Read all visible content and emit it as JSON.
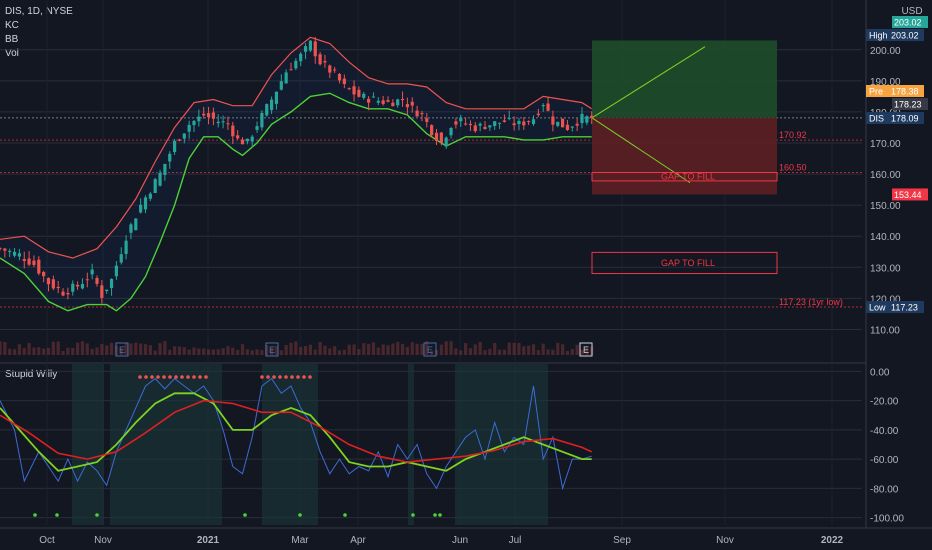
{
  "header": {
    "symbol": "DIS, 1D, NYSE",
    "indicators": [
      "KC",
      "BB",
      "Vol"
    ],
    "currency": "USD"
  },
  "sub_panel": {
    "title": "Stupid Willy"
  },
  "colors": {
    "background": "#131722",
    "bull": "#26a69a",
    "bear": "#ef5350",
    "kc_band": "#ef5350",
    "bb_band": "#4cd137",
    "target_zone": "#1f4d2a",
    "stop_zone": "#5c1f24",
    "gap_box": "#f23645",
    "indicator_line": "#3d6bd6",
    "indicator_fast": "#7ed321",
    "indicator_slow": "#e02020"
  },
  "chart_data": [
    {
      "type": "candlestick",
      "ylim": [
        105,
        207
      ],
      "x_ticks": [
        "Oct",
        "Nov",
        "2021",
        "Mar",
        "Apr",
        "Jun",
        "Jul",
        "Sep",
        "Nov",
        "2022"
      ],
      "y_ticks": [
        "200.00",
        "190.00",
        "180.00",
        "170.00",
        "160.00",
        "150.00",
        "140.00",
        "130.00",
        "120.00",
        "110.00"
      ],
      "price_labels": [
        {
          "text": "203.02",
          "value": 203.02,
          "color": "#26a69a"
        },
        {
          "text": "High",
          "value": 203.02,
          "color": "#1e3a5f"
        },
        {
          "text": "Pre",
          "value": 178.38,
          "color": "#f7a440"
        },
        {
          "text": "178.23",
          "value": 178.23,
          "color": "#363a45"
        },
        {
          "text": "DIS",
          "value": 178.09,
          "color": "#1e3a5f"
        },
        {
          "text": "153.44",
          "value": 153.44,
          "color": "#f23645"
        },
        {
          "text": "Low",
          "value": 117.23,
          "color": "#1e3a5f"
        }
      ],
      "annotations": [
        "170.92",
        "160.50",
        "117.23 (1yr low)",
        "GAP TO FILL",
        "GAP TO FILL"
      ],
      "levels": [
        {
          "label": "170.92",
          "value": 170.92
        },
        {
          "label": "160.50",
          "value": 160.5
        },
        {
          "label": "117.23 (1yr low)",
          "value": 117.23
        }
      ],
      "gap_boxes": [
        {
          "label": "GAP TO FILL",
          "top": 160.5,
          "bottom": 157.8
        },
        {
          "label": "GAP TO FILL",
          "top": 134.8,
          "bottom": 128.0
        }
      ],
      "position": {
        "entry": 178.09,
        "target": 203.0,
        "stop": 153.44
      },
      "earnings_markers": [
        "E",
        "E",
        "E",
        "E"
      ],
      "close_path": [
        [
          0,
          136
        ],
        [
          4,
          134
        ],
        [
          7,
          131
        ],
        [
          10,
          125
        ],
        [
          13,
          122
        ],
        [
          16,
          124
        ],
        [
          19,
          128
        ],
        [
          21,
          121
        ],
        [
          23,
          126
        ],
        [
          26,
          140
        ],
        [
          29,
          150
        ],
        [
          33,
          160
        ],
        [
          36,
          170
        ],
        [
          39,
          176
        ],
        [
          42,
          179
        ],
        [
          45,
          177
        ],
        [
          47,
          176
        ],
        [
          49,
          171
        ],
        [
          51,
          170
        ],
        [
          53,
          176
        ],
        [
          56,
          184
        ],
        [
          59,
          193
        ],
        [
          62,
          198
        ],
        [
          64,
          202
        ],
        [
          66,
          196
        ],
        [
          69,
          192
        ],
        [
          71,
          188
        ],
        [
          74,
          185
        ],
        [
          77,
          184
        ],
        [
          80,
          183
        ],
        [
          83,
          184
        ],
        [
          85,
          181
        ],
        [
          87,
          179
        ],
        [
          89,
          174
        ],
        [
          91,
          170
        ],
        [
          93,
          176
        ],
        [
          95,
          177
        ],
        [
          98,
          175
        ],
        [
          101,
          176
        ],
        [
          104,
          177
        ],
        [
          107,
          176
        ],
        [
          110,
          178
        ],
        [
          112,
          183
        ],
        [
          114,
          177
        ],
        [
          117,
          175
        ],
        [
          120,
          178
        ],
        [
          122,
          178
        ]
      ],
      "kc_upper": [
        [
          0,
          139
        ],
        [
          5,
          140
        ],
        [
          10,
          135
        ],
        [
          15,
          133
        ],
        [
          20,
          136
        ],
        [
          24,
          143
        ],
        [
          28,
          152
        ],
        [
          32,
          164
        ],
        [
          36,
          175
        ],
        [
          40,
          183
        ],
        [
          44,
          184
        ],
        [
          48,
          182
        ],
        [
          52,
          182
        ],
        [
          56,
          192
        ],
        [
          60,
          199
        ],
        [
          64,
          204
        ],
        [
          68,
          202
        ],
        [
          72,
          196
        ],
        [
          76,
          191
        ],
        [
          80,
          189
        ],
        [
          84,
          189
        ],
        [
          88,
          188
        ],
        [
          92,
          183
        ],
        [
          96,
          181
        ],
        [
          100,
          181
        ],
        [
          104,
          181
        ],
        [
          108,
          181
        ],
        [
          112,
          185
        ],
        [
          116,
          184
        ],
        [
          120,
          183
        ],
        [
          122,
          181
        ]
      ],
      "bb_lower": [
        [
          0,
          133
        ],
        [
          5,
          128
        ],
        [
          10,
          119
        ],
        [
          14,
          116
        ],
        [
          18,
          118
        ],
        [
          22,
          118
        ],
        [
          24,
          116
        ],
        [
          27,
          120
        ],
        [
          30,
          127
        ],
        [
          33,
          138
        ],
        [
          36,
          150
        ],
        [
          39,
          165
        ],
        [
          42,
          172
        ],
        [
          45,
          172
        ],
        [
          48,
          168
        ],
        [
          50,
          166
        ],
        [
          53,
          170
        ],
        [
          56,
          176
        ],
        [
          60,
          180
        ],
        [
          64,
          185
        ],
        [
          68,
          186
        ],
        [
          72,
          183
        ],
        [
          76,
          181
        ],
        [
          80,
          181
        ],
        [
          84,
          179
        ],
        [
          88,
          173
        ],
        [
          92,
          169
        ],
        [
          96,
          172
        ],
        [
          100,
          172
        ],
        [
          104,
          172
        ],
        [
          108,
          171
        ],
        [
          112,
          171
        ],
        [
          116,
          172
        ],
        [
          120,
          172
        ],
        [
          122,
          172
        ]
      ]
    },
    {
      "type": "line",
      "title": "Stupid Willy",
      "ylim": [
        -105,
        5
      ],
      "y_ticks": [
        "0.00",
        "-20.00",
        "-40.00",
        "-60.00",
        "-80.00",
        "-100.00"
      ],
      "series": [
        {
          "values": [
            [
              0,
              -20
            ],
            [
              3,
              -40
            ],
            [
              5,
              -75
            ],
            [
              8,
              -55
            ],
            [
              10,
              -65
            ],
            [
              12,
              -75
            ],
            [
              14,
              -60
            ],
            [
              16,
              -75
            ],
            [
              18,
              -62
            ],
            [
              20,
              -68
            ],
            [
              22,
              -78
            ],
            [
              24,
              -55
            ],
            [
              26,
              -40
            ],
            [
              28,
              -25
            ],
            [
              30,
              -10
            ],
            [
              32,
              -5
            ],
            [
              34,
              -12
            ],
            [
              36,
              -5
            ],
            [
              38,
              -10
            ],
            [
              40,
              -15
            ],
            [
              42,
              -10
            ],
            [
              44,
              -20
            ],
            [
              46,
              -40
            ],
            [
              48,
              -65
            ],
            [
              50,
              -70
            ],
            [
              52,
              -45
            ],
            [
              54,
              -10
            ],
            [
              56,
              -5
            ],
            [
              58,
              -15
            ],
            [
              60,
              -10
            ],
            [
              62,
              -25
            ],
            [
              64,
              -35
            ],
            [
              66,
              -55
            ],
            [
              68,
              -70
            ],
            [
              70,
              -60
            ],
            [
              72,
              -70
            ],
            [
              74,
              -65
            ],
            [
              76,
              -68
            ],
            [
              78,
              -55
            ],
            [
              80,
              -72
            ],
            [
              82,
              -50
            ],
            [
              84,
              -60
            ],
            [
              86,
              -50
            ],
            [
              88,
              -70
            ],
            [
              90,
              -80
            ],
            [
              92,
              -65
            ],
            [
              94,
              -55
            ],
            [
              96,
              -45
            ],
            [
              98,
              -40
            ],
            [
              100,
              -60
            ],
            [
              102,
              -35
            ],
            [
              104,
              -55
            ],
            [
              106,
              -45
            ],
            [
              108,
              -50
            ],
            [
              110,
              -10
            ],
            [
              112,
              -60
            ],
            [
              114,
              -45
            ],
            [
              116,
              -80
            ],
            [
              118,
              -60
            ],
            [
              120,
              -60
            ],
            [
              122,
              -58
            ]
          ]
        },
        {
          "values": [
            [
              0,
              -25
            ],
            [
              4,
              -40
            ],
            [
              8,
              -55
            ],
            [
              12,
              -68
            ],
            [
              16,
              -65
            ],
            [
              20,
              -62
            ],
            [
              24,
              -50
            ],
            [
              28,
              -35
            ],
            [
              32,
              -22
            ],
            [
              36,
              -15
            ],
            [
              40,
              -15
            ],
            [
              44,
              -22
            ],
            [
              48,
              -40
            ],
            [
              52,
              -40
            ],
            [
              56,
              -30
            ],
            [
              60,
              -25
            ],
            [
              64,
              -30
            ],
            [
              68,
              -45
            ],
            [
              72,
              -62
            ],
            [
              76,
              -65
            ],
            [
              80,
              -65
            ],
            [
              84,
              -62
            ],
            [
              88,
              -65
            ],
            [
              92,
              -68
            ],
            [
              96,
              -60
            ],
            [
              100,
              -55
            ],
            [
              104,
              -50
            ],
            [
              108,
              -45
            ],
            [
              112,
              -50
            ],
            [
              116,
              -55
            ],
            [
              120,
              -60
            ],
            [
              122,
              -60
            ]
          ]
        },
        {
          "values": [
            [
              0,
              -30
            ],
            [
              6,
              -42
            ],
            [
              12,
              -56
            ],
            [
              18,
              -60
            ],
            [
              24,
              -55
            ],
            [
              30,
              -42
            ],
            [
              36,
              -28
            ],
            [
              42,
              -20
            ],
            [
              48,
              -22
            ],
            [
              54,
              -28
            ],
            [
              60,
              -28
            ],
            [
              66,
              -38
            ],
            [
              72,
              -50
            ],
            [
              78,
              -58
            ],
            [
              84,
              -62
            ],
            [
              90,
              -60
            ],
            [
              96,
              -58
            ],
            [
              102,
              -54
            ],
            [
              108,
              -48
            ],
            [
              114,
              -46
            ],
            [
              120,
              -52
            ],
            [
              122,
              -55
            ]
          ]
        }
      ]
    }
  ]
}
